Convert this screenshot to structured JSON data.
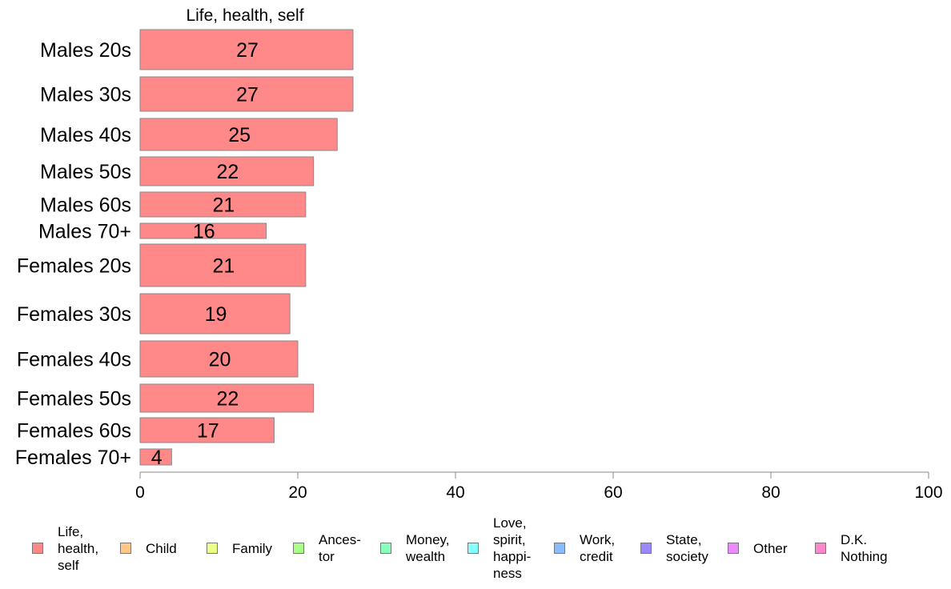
{
  "chart_data": {
    "type": "bar",
    "orientation": "horizontal",
    "stacked": true,
    "title": "Life, health, self",
    "categories": [
      "Males 20s",
      "Males 30s",
      "Males 40s",
      "Males 50s",
      "Males 60s",
      "Males 70+",
      "Females 20s",
      "Females 30s",
      "Females 40s",
      "Females 50s",
      "Females 60s",
      "Females 70+"
    ],
    "series": [
      {
        "name": "Life, health, self",
        "values": [
          27,
          27,
          25,
          22,
          21,
          16,
          21,
          19,
          20,
          22,
          17,
          4
        ],
        "color": "#ff8888"
      }
    ],
    "data_labels": [
      "27",
      "27",
      "25",
      "22",
      "21",
      "16",
      "21",
      "19",
      "20",
      "22",
      "17",
      "4"
    ],
    "xlim": [
      0,
      100
    ],
    "xticks": [
      0,
      20,
      40,
      60,
      80,
      100
    ],
    "xtick_labels": [
      "0",
      "20",
      "40",
      "60",
      "80",
      "100"
    ],
    "grid": false,
    "legend": {
      "placement": "bottom",
      "entries": [
        {
          "label": "Life,\nhealth,\nself",
          "color": "#ff8888"
        },
        {
          "label": "Child",
          "color": "#ffc888"
        },
        {
          "label": "Family",
          "color": "#eeff88"
        },
        {
          "label": "Ances-\ntor",
          "color": "#aaff88"
        },
        {
          "label": "Money,\nwealth",
          "color": "#88ffbb"
        },
        {
          "label": "Love,\nspirit,\nhappi-\nness",
          "color": "#88ffff"
        },
        {
          "label": "Work,\ncredit",
          "color": "#88bbff"
        },
        {
          "label": "State,\nsociety",
          "color": "#9988ff"
        },
        {
          "label": "Other",
          "color": "#ee88ff"
        },
        {
          "label": "D.K.\nNothing",
          "color": "#ff88cc"
        }
      ]
    }
  }
}
